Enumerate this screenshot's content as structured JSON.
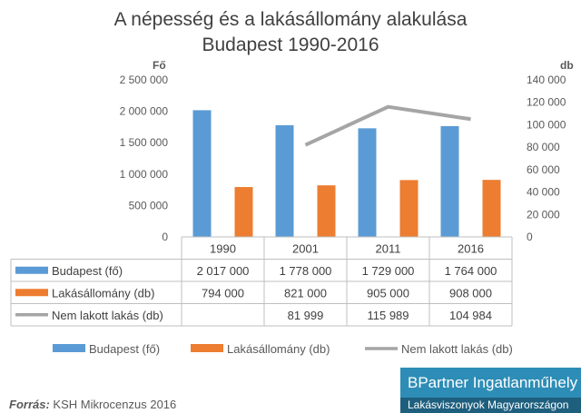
{
  "chart_data": {
    "type": "bar",
    "title": "A népesség és a lakásállomány alakulása",
    "subtitle": "Budapest 1990-2016",
    "categories": [
      "1990",
      "2001",
      "2011",
      "2016"
    ],
    "y_left_label": "Fő",
    "y_right_label": "db",
    "y_left_ticks": [
      "2 500 000",
      "2 000 000",
      "1 500 000",
      "1 000 000",
      "500 000",
      "0"
    ],
    "y_right_ticks": [
      "140 000",
      "120 000",
      "100 000",
      "80 000",
      "60 000",
      "40 000",
      "20 000",
      "0"
    ],
    "y_left_range": [
      0,
      2500000
    ],
    "y_right_range": [
      0,
      140000
    ],
    "series": [
      {
        "name": "Budapest (fő)",
        "kind": "bar",
        "axis": "left",
        "color": "#5b9bd5",
        "values": [
          2017000,
          1778000,
          1729000,
          1764000
        ],
        "labels": [
          "2 017 000",
          "1 778 000",
          "1 729 000",
          "1 764 000"
        ]
      },
      {
        "name": "Lakásállomány (db)",
        "kind": "bar",
        "axis": "left",
        "color": "#ed7d31",
        "values": [
          794000,
          821000,
          905000,
          908000
        ],
        "labels": [
          "794 000",
          "821 000",
          "905 000",
          "908 000"
        ]
      },
      {
        "name": "Nem lakott lakás (db)",
        "kind": "line",
        "axis": "right",
        "color": "#a5a5a5",
        "values": [
          null,
          81999,
          115989,
          104984
        ],
        "labels": [
          "",
          "81 999",
          "115 989",
          "104 984"
        ]
      }
    ]
  },
  "footer": {
    "source_label": "Forrás:",
    "source_text": "KSH Mikrocenzus 2016",
    "brand_name": "BPartner Ingatlanműhely",
    "brand_tagline": "Lakásviszonyok Magyarországon"
  }
}
